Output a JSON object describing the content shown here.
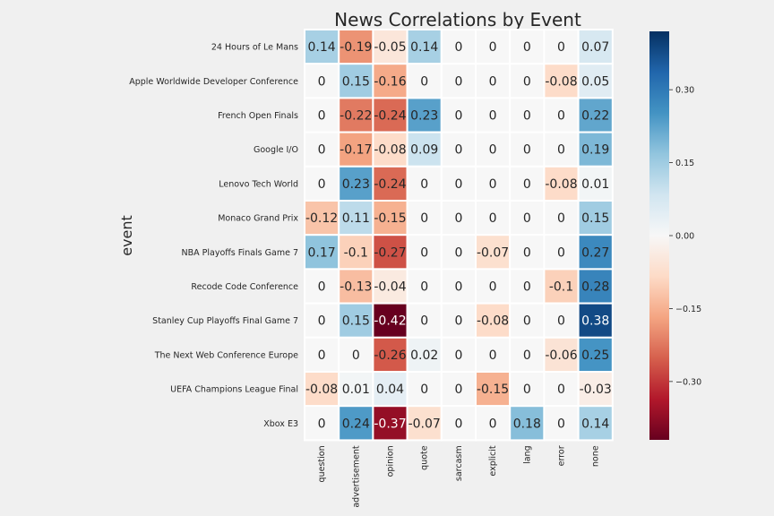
{
  "chart_data": {
    "type": "heatmap",
    "title": "News Correlations by Event",
    "ylabel": "event",
    "xlabel": "",
    "rows": [
      "24 Hours of Le Mans",
      "Apple Worldwide Developer Conference",
      "French Open Finals",
      "Google I/O",
      "Lenovo Tech World",
      "Monaco Grand Prix",
      "NBA Playoffs Finals Game 7",
      "Recode Code Conference",
      "Stanley Cup Playoffs Final Game 7",
      "The Next Web Conference Europe",
      "UEFA Champions League Final",
      "Xbox E3"
    ],
    "columns": [
      "question",
      "advertisement",
      "opinion",
      "quote",
      "sarcasm",
      "explicit",
      "lang",
      "error",
      "none"
    ],
    "values": [
      [
        0.14,
        -0.19,
        -0.05,
        0.14,
        0,
        0,
        0,
        0,
        0.07
      ],
      [
        0,
        0.15,
        -0.16,
        0,
        0,
        0,
        0,
        -0.08,
        0.05
      ],
      [
        0,
        -0.22,
        -0.24,
        0.23,
        0,
        0,
        0,
        0,
        0.22
      ],
      [
        0,
        -0.17,
        -0.08,
        0.09,
        0,
        0,
        0,
        0,
        0.19
      ],
      [
        0,
        0.23,
        -0.24,
        0,
        0,
        0,
        0,
        -0.08,
        0.01
      ],
      [
        -0.12,
        0.11,
        -0.15,
        0,
        0,
        0,
        0,
        0,
        0.15
      ],
      [
        0.17,
        -0.1,
        -0.27,
        0,
        0,
        -0.07,
        0,
        0,
        0.27
      ],
      [
        0,
        -0.13,
        -0.04,
        0,
        0,
        0,
        0,
        -0.1,
        0.28
      ],
      [
        0,
        0.15,
        -0.42,
        0,
        0,
        -0.08,
        0,
        0,
        0.38
      ],
      [
        0,
        0,
        -0.26,
        0.02,
        0,
        0,
        0,
        -0.06,
        0.25
      ],
      [
        -0.08,
        0.01,
        0.04,
        0,
        0,
        -0.15,
        0,
        0,
        -0.03
      ],
      [
        0,
        0.24,
        -0.37,
        -0.07,
        0,
        0,
        0.18,
        0,
        0.14
      ]
    ],
    "colorbar": {
      "vmin": -0.42,
      "vmax": 0.42,
      "colormap": "RdBu",
      "ticks": [
        0.3,
        0.15,
        0.0,
        -0.15,
        -0.3
      ],
      "tick_labels": [
        "0.30",
        "0.15",
        "0.00",
        "−0.15",
        "−0.30"
      ]
    }
  }
}
